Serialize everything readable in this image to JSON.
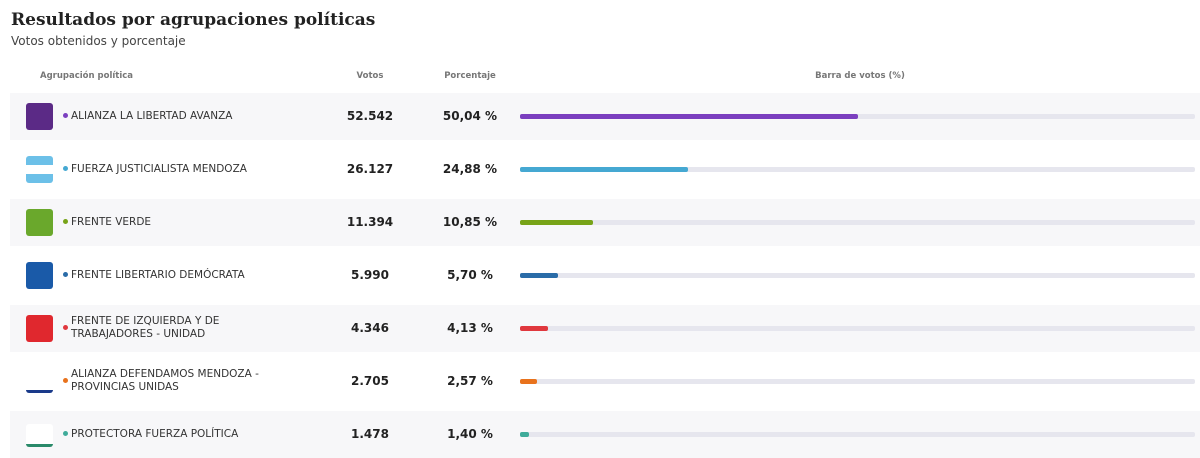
{
  "header": {
    "title": "Resultados por agrupaciones políticas",
    "subtitle": "Votos obtenidos y porcentaje"
  },
  "table": {
    "columns": [
      "Agrupación política",
      "Votos",
      "Porcentaje",
      "Barra de votos (%)"
    ],
    "bar_range": [
      0,
      100
    ],
    "rows": [
      {
        "name": "ALIANZA LA LIBERTAD AVANZA",
        "votes": "52.542",
        "percentage": 50.04,
        "percentage_label": "50,04 %",
        "color": "#7b3fbf"
      },
      {
        "name": "FUERZA JUSTICIALISTA MENDOZA",
        "votes": "26.127",
        "percentage": 24.88,
        "percentage_label": "24,88 %",
        "color": "#45a8d2"
      },
      {
        "name": "FRENTE VERDE",
        "votes": "11.394",
        "percentage": 10.85,
        "percentage_label": "10,85 %",
        "color": "#77a318"
      },
      {
        "name": "FRENTE LIBERTARIO DEMÓCRATA",
        "votes": "5.990",
        "percentage": 5.7,
        "percentage_label": "5,70 %",
        "color": "#2a6ca8"
      },
      {
        "name": "FRENTE DE IZQUIERDA Y DE TRABAJADORES - UNIDAD",
        "votes": "4.346",
        "percentage": 4.13,
        "percentage_label": "4,13 %",
        "color": "#e0383e"
      },
      {
        "name": "ALIANZA DEFENDAMOS MENDOZA - PROVINCIAS UNIDAS",
        "votes": "2.705",
        "percentage": 2.57,
        "percentage_label": "2,57 %",
        "color": "#e8721c"
      },
      {
        "name": "PROTECTORA FUERZA POLÍTICA",
        "votes": "1.478",
        "percentage": 1.4,
        "percentage_label": "1,40 %",
        "color": "#3fab9a"
      }
    ]
  }
}
